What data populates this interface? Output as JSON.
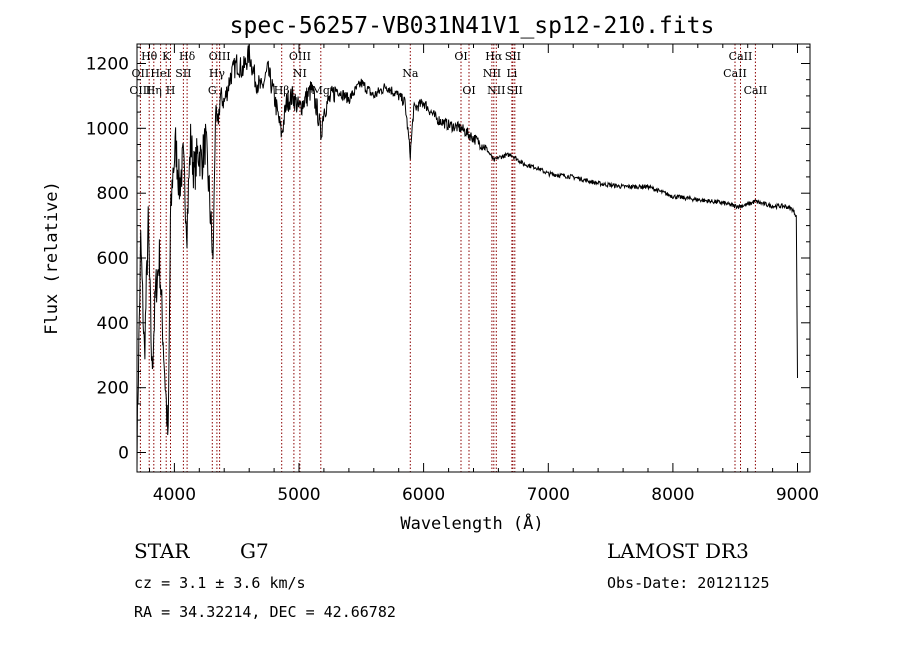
{
  "chart_data": {
    "type": "line",
    "title": "spec-56257-VB031N41V1_sp12-210.fits",
    "xlabel": "Wavelength (Å)",
    "ylabel": "Flux (relative)",
    "xlim": [
      3700,
      9100
    ],
    "ylim": [
      -60,
      1260
    ],
    "xticks": [
      4000,
      5000,
      6000,
      7000,
      8000,
      9000
    ],
    "yticks": [
      0,
      200,
      400,
      600,
      800,
      1000,
      1200
    ],
    "series": [
      {
        "name": "flux",
        "x": [
          3700,
          3730,
          3760,
          3790,
          3820,
          3850,
          3880,
          3910,
          3935,
          3950,
          3968,
          3985,
          4010,
          4040,
          4070,
          4101,
          4130,
          4160,
          4190,
          4220,
          4250,
          4280,
          4310,
          4330,
          4345,
          4370,
          4400,
          4450,
          4500,
          4550,
          4600,
          4650,
          4700,
          4750,
          4800,
          4861,
          4900,
          4950,
          5000,
          5050,
          5100,
          5150,
          5175,
          5200,
          5300,
          5400,
          5500,
          5600,
          5700,
          5800,
          5850,
          5893,
          5920,
          6000,
          6100,
          6200,
          6300,
          6400,
          6500,
          6563,
          6600,
          6700,
          6800,
          6900,
          7000,
          7200,
          7400,
          7600,
          7800,
          8000,
          8200,
          8400,
          8498,
          8542,
          8600,
          8662,
          8700,
          8800,
          8900,
          8960,
          8990,
          9000
        ],
        "y": [
          20,
          650,
          300,
          700,
          250,
          500,
          600,
          350,
          150,
          30,
          700,
          850,
          950,
          820,
          900,
          700,
          960,
          860,
          930,
          900,
          960,
          800,
          580,
          1050,
          1000,
          1100,
          1080,
          1160,
          1200,
          1180,
          1230,
          1150,
          1120,
          1180,
          1100,
          980,
          1080,
          1100,
          1060,
          1090,
          1120,
          1050,
          980,
          1060,
          1120,
          1090,
          1140,
          1100,
          1130,
          1100,
          1080,
          920,
          1060,
          1080,
          1030,
          1010,
          1000,
          970,
          940,
          900,
          910,
          920,
          890,
          880,
          860,
          850,
          830,
          820,
          820,
          790,
          780,
          770,
          760,
          760,
          765,
          775,
          770,
          760,
          760,
          750,
          730,
          230
        ]
      }
    ],
    "line_labels": [
      {
        "name": "Hθ",
        "x": 3798,
        "row": 0
      },
      {
        "name": "OII",
        "x": 3727,
        "row": 1
      },
      {
        "name": "OIII",
        "x": 3727,
        "row": 2
      },
      {
        "name": "Hη",
        "x": 3835,
        "row": 2
      },
      {
        "name": "HeI",
        "x": 3889,
        "row": 1
      },
      {
        "name": "K",
        "x": 3934,
        "row": 0
      },
      {
        "name": "H",
        "x": 3969,
        "row": 2
      },
      {
        "name": "SII",
        "x": 4072,
        "row": 1
      },
      {
        "name": "Hδ",
        "x": 4102,
        "row": 0
      },
      {
        "name": "OIII",
        "x": 4363,
        "row": 0
      },
      {
        "name": "Hγ",
        "x": 4341,
        "row": 1
      },
      {
        "name": "G",
        "x": 4304,
        "row": 2
      },
      {
        "name": "OIII",
        "x": 5007,
        "row": 0
      },
      {
        "name": "NI",
        "x": 5007,
        "row": 1
      },
      {
        "name": "Hβ",
        "x": 4861,
        "row": 2
      },
      {
        "name": "Mg",
        "x": 5175,
        "row": 2
      },
      {
        "name": "Na",
        "x": 5893,
        "row": 1
      },
      {
        "name": "OI",
        "x": 6300,
        "row": 0
      },
      {
        "name": "OI",
        "x": 6364,
        "row": 2
      },
      {
        "name": "Hα",
        "x": 6563,
        "row": 0
      },
      {
        "name": "SII",
        "x": 6716,
        "row": 0
      },
      {
        "name": "NII",
        "x": 6548,
        "row": 1
      },
      {
        "name": "Li",
        "x": 6708,
        "row": 1
      },
      {
        "name": "NII",
        "x": 6583,
        "row": 2
      },
      {
        "name": "SII",
        "x": 6731,
        "row": 2
      },
      {
        "name": "CaII",
        "x": 8542,
        "row": 0
      },
      {
        "name": "CaII",
        "x": 8498,
        "row": 1
      },
      {
        "name": "CaII",
        "x": 8662,
        "row": 2
      }
    ],
    "marker_lines": [
      3727,
      3798,
      3835,
      3889,
      3934,
      3969,
      4072,
      4102,
      4304,
      4341,
      4363,
      4861,
      4959,
      5007,
      5175,
      5893,
      6300,
      6364,
      6548,
      6563,
      6583,
      6708,
      6716,
      6731,
      8498,
      8542,
      8662
    ],
    "marker_color": "#8b0000"
  },
  "info": {
    "object_type": "STAR",
    "subclass": "G7",
    "survey": "LAMOST DR3",
    "redshift": "cz = 3.1 ± 3.6 km/s",
    "obs_date": "Obs-Date: 20121125",
    "coords": "RA =  34.32214, DEC =  42.66782"
  }
}
